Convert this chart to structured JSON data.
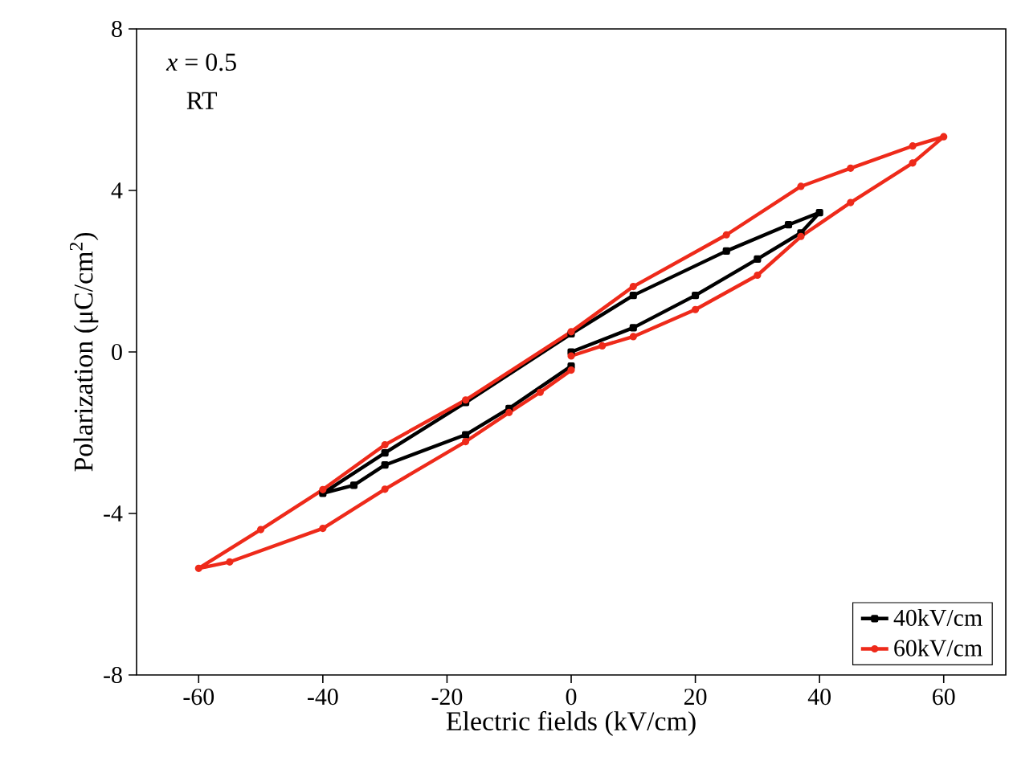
{
  "chart_data": {
    "type": "line",
    "xlabel": "Electric fields (kV/cm)",
    "ylabel": "Polarization (μC/cm$^{2}$)",
    "annotations": [
      "*x* = 0.5",
      "RT"
    ],
    "xlim": [
      -70,
      70
    ],
    "xticks": [
      -60,
      -40,
      -20,
      0,
      20,
      40,
      60
    ],
    "ylim": [
      -8,
      8
    ],
    "yticks": [
      -8,
      -4,
      0,
      4,
      8
    ],
    "legend": "bottom right",
    "grid": false,
    "line_style": "solid",
    "series": [
      {
        "name": "40kV/cm",
        "color": "#000000",
        "marker": "square",
        "x": [
          0,
          10,
          20,
          30,
          37,
          40,
          35,
          25,
          10,
          0,
          -17,
          -30,
          -40,
          -35,
          -30,
          -17,
          -10,
          0
        ],
        "values": [
          0,
          0.6,
          1.4,
          2.3,
          2.95,
          3.45,
          3.15,
          2.5,
          1.4,
          0.45,
          -1.25,
          -2.5,
          -3.5,
          -3.3,
          -2.8,
          -2.05,
          -1.4,
          -0.35
        ]
      },
      {
        "name": "60kV/cm",
        "color": "#ee2a1a",
        "marker": "circle",
        "x": [
          0,
          5,
          10,
          20,
          30,
          37,
          45,
          55,
          60,
          55,
          45,
          37,
          25,
          10,
          0,
          -17,
          -30,
          -40,
          -50,
          -60,
          -55,
          -40,
          -30,
          -17,
          -10,
          -5,
          0
        ],
        "values": [
          -0.1,
          0.15,
          0.38,
          1.05,
          1.9,
          2.86,
          3.7,
          4.68,
          5.33,
          5.1,
          4.55,
          4.1,
          2.9,
          1.62,
          0.5,
          -1.19,
          -2.3,
          -3.41,
          -4.4,
          -5.36,
          -5.2,
          -4.37,
          -3.4,
          -2.22,
          -1.5,
          -1.0,
          -0.45
        ]
      }
    ]
  }
}
